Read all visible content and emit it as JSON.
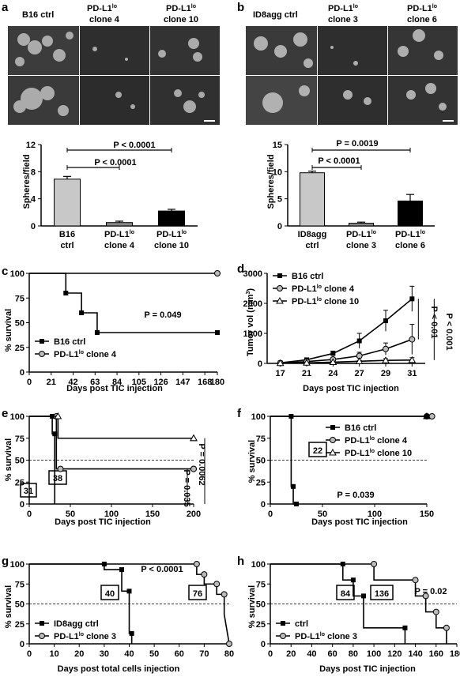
{
  "panels": {
    "a": {
      "letter": "a",
      "micrograph_headers": [
        "B16 ctrl",
        "PD-L1lo clone 4",
        "PD-L1lo clone 10"
      ],
      "headers": {
        "h1": "B16 ctrl",
        "h2a": "PD-L1",
        "h2b": "lo",
        "h2c": "clone 4",
        "h3a": "PD-L1",
        "h3b": "lo",
        "h3c": "clone 10"
      },
      "ylabel": "Spheres/field",
      "sig": [
        "P < 0.0001",
        "P < 0.0001"
      ]
    },
    "b": {
      "letter": "b",
      "micrograph_headers": [
        "ID8agg ctrl",
        "PD-L1lo clone 3",
        "PD-L1lo clone 6"
      ],
      "headers": {
        "h1": "ID8agg ctrl",
        "h2a": "PD-L1",
        "h2b": "lo",
        "h2c": "clone 3",
        "h3a": "PD-L1",
        "h3b": "lo",
        "h3c": "clone 6"
      },
      "ylabel": "Spheres/field",
      "sig": [
        "P = 0.0019",
        "P < 0.0001"
      ]
    },
    "c": {
      "letter": "c",
      "ylabel": "% survival",
      "xlabel": "Days post TIC injection",
      "p": "P = 0.049",
      "legend": [
        {
          "a": "B16 ctrl",
          "b": "",
          "c": ""
        },
        {
          "a": "PD-L1",
          "b": "lo",
          "c": " clone 4"
        }
      ]
    },
    "d": {
      "letter": "d",
      "ylabel": "Tumor vol (mm3)",
      "ylabel_a": "Tumor vol (mm",
      "ylabel_b": "3",
      "ylabel_c": ")",
      "xlabel": "Days post TIC injection",
      "legend": [
        {
          "a": "B16 ctrl",
          "b": "",
          "c": ""
        },
        {
          "a": "PD-L1",
          "b": "lo",
          "c": " clone 4"
        },
        {
          "a": "PD-L1",
          "b": "lo",
          "c": " clone 10"
        }
      ],
      "p1": "P < 0.01",
      "p2": "P < 0.001"
    },
    "e": {
      "letter": "e",
      "ylabel": "% survival",
      "xlabel": "Days post TIC injection",
      "p1": "P = 0.0062",
      "p2": "P = 0.035",
      "box1": "31",
      "box2": "38"
    },
    "f": {
      "letter": "f",
      "ylabel": "% survival",
      "xlabel": "Days post TIC injection",
      "p": "P = 0.039",
      "box": "22",
      "legend": [
        {
          "a": "B16 ctrl",
          "b": "",
          "c": ""
        },
        {
          "a": "PD-L1",
          "b": "lo",
          "c": " clone 4"
        },
        {
          "a": "PD-L1",
          "b": "lo",
          "c": " clone 10"
        }
      ]
    },
    "g": {
      "letter": "g",
      "ylabel": "% survival",
      "xlabel": "Days post total cells injection",
      "p": "P < 0.0001",
      "box1": "40",
      "box2": "76",
      "legend": [
        {
          "a": "ID8agg ctrl",
          "b": "",
          "c": ""
        },
        {
          "a": "PD-L1",
          "b": "lo",
          "c": " clone 3"
        }
      ]
    },
    "h": {
      "letter": "h",
      "ylabel": "% survival",
      "xlabel": "Days post TIC injection",
      "p": "P = 0.02",
      "box1": "84",
      "box2": "136",
      "legend": [
        {
          "a": "ctrl",
          "b": "",
          "c": ""
        },
        {
          "a": "PD-L1",
          "b": "lo",
          "c": " clone 3"
        }
      ]
    }
  },
  "chart_data": [
    {
      "panel": "a",
      "type": "bar",
      "categories": [
        "B16 ctrl",
        "PD-L1lo clone 4",
        "PD-L1lo clone 10"
      ],
      "category_labels": [
        [
          "B16",
          "ctrl"
        ],
        [
          "PD-L1lo",
          "clone 4"
        ],
        [
          "PD-L1lo",
          "clone 10"
        ]
      ],
      "values": [
        6.9,
        0.5,
        2.2
      ],
      "errors": [
        0.4,
        0.2,
        0.25
      ],
      "colors": [
        "#c8c8c8",
        "#888888",
        "#000000"
      ],
      "ylabel": "Spheres/field",
      "ylim": [
        0,
        12
      ],
      "yticks": [
        0,
        4,
        8,
        12
      ]
    },
    {
      "panel": "b",
      "type": "bar",
      "categories": [
        "ID8agg ctrl",
        "PD-L1lo clone 3",
        "PD-L1lo clone 6"
      ],
      "category_labels": [
        [
          "ID8agg",
          "ctrl"
        ],
        [
          "PD-L1lo",
          "clone 3"
        ],
        [
          "PD-L1lo",
          "clone 6"
        ]
      ],
      "values": [
        9.8,
        0.5,
        4.6
      ],
      "errors": [
        0.3,
        0.2,
        1.2
      ],
      "colors": [
        "#c8c8c8",
        "#888888",
        "#000000"
      ],
      "ylabel": "Spheres/field",
      "ylim": [
        0,
        15
      ],
      "yticks": [
        0,
        5,
        10,
        15
      ]
    },
    {
      "panel": "c",
      "type": "line",
      "step": true,
      "xlim": [
        0,
        180
      ],
      "ylim": [
        0,
        100
      ],
      "xticks": [
        0,
        21,
        42,
        63,
        84,
        105,
        126,
        147,
        168,
        180
      ],
      "yticks": [
        0,
        25,
        50,
        75,
        100
      ],
      "series": [
        {
          "name": "B16 ctrl",
          "marker": "square",
          "x": [
            0,
            35,
            35,
            50,
            50,
            65,
            65,
            180
          ],
          "y": [
            100,
            100,
            80,
            80,
            60,
            60,
            40,
            40
          ],
          "markers": [
            [
              35,
              80
            ],
            [
              50,
              60
            ],
            [
              65,
              40
            ],
            [
              180,
              40
            ]
          ]
        },
        {
          "name": "PD-L1lo clone 4",
          "marker": "circle",
          "x": [
            0,
            180
          ],
          "y": [
            100,
            100
          ],
          "markers": [
            [
              180,
              100
            ]
          ]
        }
      ]
    },
    {
      "panel": "d",
      "type": "line",
      "x": [
        17,
        21,
        24,
        27,
        29,
        31
      ],
      "ylim": [
        0,
        3000
      ],
      "yticks": [
        0,
        1000,
        2000,
        3000
      ],
      "series": [
        {
          "name": "B16 ctrl",
          "marker": "square",
          "values": [
            20,
            120,
            330,
            750,
            1420,
            2150
          ],
          "errors": [
            10,
            40,
            80,
            250,
            350,
            420
          ]
        },
        {
          "name": "PD-L1lo clone 4",
          "marker": "circle",
          "values": [
            10,
            60,
            130,
            250,
            480,
            800
          ],
          "errors": [
            5,
            30,
            60,
            120,
            200,
            500
          ]
        },
        {
          "name": "PD-L1lo clone 10",
          "marker": "triangle",
          "values": [
            5,
            20,
            40,
            70,
            100,
            110
          ],
          "errors": [
            3,
            10,
            20,
            30,
            60,
            80
          ]
        }
      ]
    },
    {
      "panel": "e",
      "type": "line",
      "step": true,
      "xlim": [
        0,
        200
      ],
      "ylim": [
        0,
        100
      ],
      "xticks": [
        0,
        50,
        100,
        150,
        200
      ],
      "yticks": [
        0,
        25,
        50,
        75,
        100
      ],
      "series": [
        {
          "name": "B16 ctrl",
          "marker": "square",
          "x": [
            0,
            28,
            28,
            31,
            31
          ],
          "y": [
            100,
            100,
            80,
            80,
            0
          ]
        },
        {
          "name": "PD-L1lo clone 4",
          "marker": "circle",
          "x": [
            0,
            33,
            33,
            38,
            38,
            200
          ],
          "y": [
            100,
            100,
            40,
            40,
            40,
            40
          ]
        },
        {
          "name": "PD-L1lo clone 10",
          "marker": "triangle",
          "x": [
            0,
            35,
            35,
            200
          ],
          "y": [
            100,
            100,
            75,
            75
          ]
        }
      ]
    },
    {
      "panel": "f",
      "type": "line",
      "step": true,
      "xlim": [
        0,
        150
      ],
      "ylim": [
        0,
        100
      ],
      "xticks": [
        0,
        50,
        100,
        150
      ],
      "yticks": [
        0,
        25,
        50,
        75,
        100
      ],
      "series": [
        {
          "name": "B16 ctrl",
          "marker": "square",
          "x": [
            0,
            20,
            20,
            22,
            22,
            25
          ],
          "y": [
            100,
            100,
            20,
            20,
            0,
            0
          ]
        },
        {
          "name": "PD-L1lo clone 4",
          "marker": "circle",
          "x": [
            0,
            150
          ],
          "y": [
            100,
            100
          ]
        },
        {
          "name": "PD-L1lo clone 10",
          "marker": "triangle",
          "x": [
            0,
            150
          ],
          "y": [
            100,
            100
          ]
        }
      ]
    },
    {
      "panel": "g",
      "type": "line",
      "step": true,
      "xlim": [
        0,
        80
      ],
      "ylim": [
        0,
        100
      ],
      "xticks": [
        0,
        10,
        20,
        30,
        40,
        50,
        60,
        70,
        80
      ],
      "yticks": [
        0,
        25,
        50,
        75,
        100
      ],
      "series": [
        {
          "name": "ID8agg ctrl",
          "marker": "square",
          "x": [
            0,
            30,
            30,
            37,
            37,
            40,
            40,
            41,
            41
          ],
          "y": [
            100,
            100,
            93,
            93,
            66,
            66,
            13,
            13,
            0
          ]
        },
        {
          "name": "PD-L1lo clone 3",
          "marker": "circle",
          "x": [
            0,
            67,
            67,
            70,
            70,
            75,
            75,
            78,
            78,
            80
          ],
          "y": [
            100,
            100,
            87,
            87,
            75,
            75,
            62,
            62,
            37,
            0
          ]
        }
      ]
    },
    {
      "panel": "h",
      "type": "line",
      "step": true,
      "xlim": [
        0,
        180
      ],
      "ylim": [
        0,
        100
      ],
      "xticks": [
        0,
        20,
        40,
        60,
        80,
        100,
        120,
        140,
        160,
        180
      ],
      "yticks": [
        0,
        25,
        50,
        75,
        100
      ],
      "series": [
        {
          "name": "ctrl",
          "marker": "square",
          "x": [
            0,
            70,
            70,
            80,
            80,
            90,
            90,
            130,
            130
          ],
          "y": [
            100,
            100,
            80,
            80,
            60,
            60,
            20,
            20,
            0
          ]
        },
        {
          "name": "PD-L1lo clone 3",
          "marker": "circle",
          "x": [
            0,
            100,
            100,
            140,
            140,
            150,
            150,
            160,
            160,
            170,
            170
          ],
          "y": [
            100,
            100,
            80,
            80,
            60,
            60,
            40,
            40,
            20,
            20,
            0
          ]
        }
      ]
    }
  ]
}
